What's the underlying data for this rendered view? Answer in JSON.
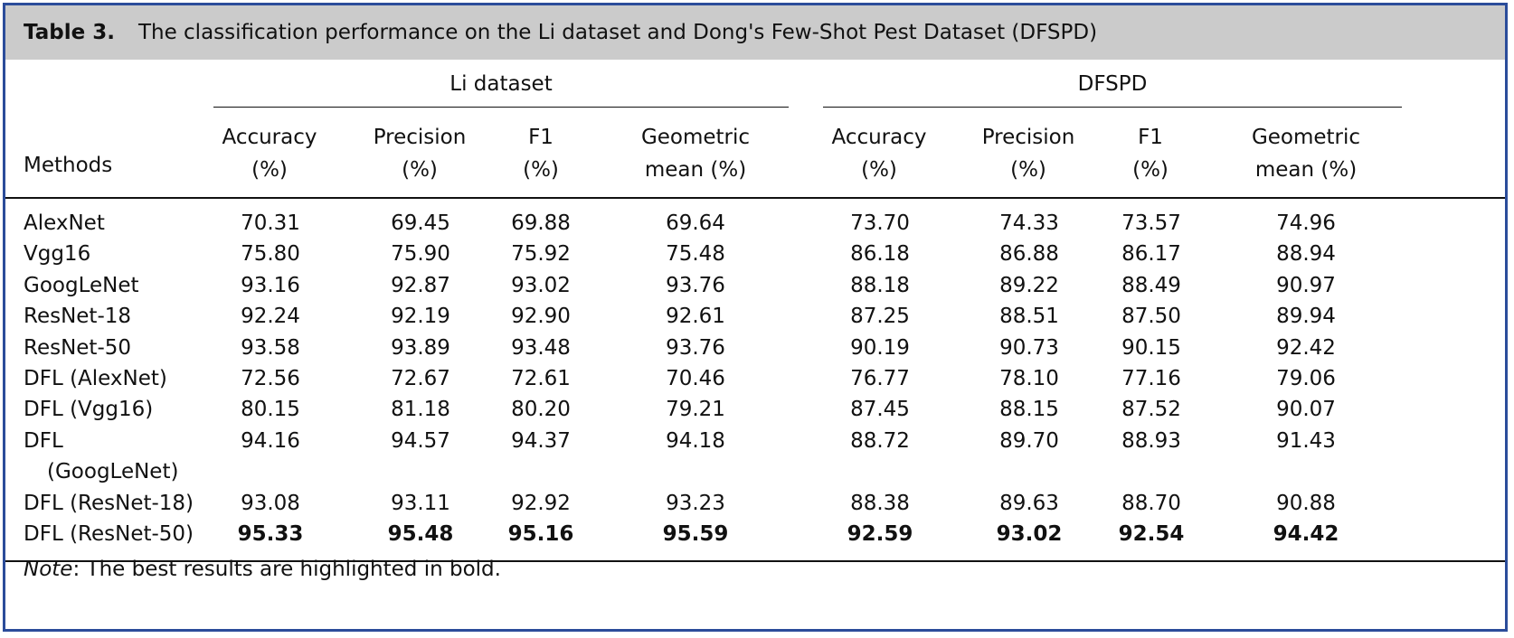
{
  "caption": {
    "label": "Table 3.",
    "text": "The classification performance on the Li dataset and Dong's Few-Shot Pest Dataset (DFSPD)"
  },
  "groups": {
    "li": "Li dataset",
    "dfspd": "DFSPD"
  },
  "headers": {
    "methods": "Methods",
    "li": [
      {
        "l1": "Accuracy",
        "l2": "(%)"
      },
      {
        "l1": "Precision",
        "l2": "(%)"
      },
      {
        "l1": "F1",
        "l2": "(%)"
      },
      {
        "l1": "Geometric",
        "l2": "mean (%)"
      }
    ],
    "dfspd": [
      {
        "l1": "Accuracy",
        "l2": "(%)"
      },
      {
        "l1": "Precision",
        "l2": "(%)"
      },
      {
        "l1": "F1",
        "l2": "(%)"
      },
      {
        "l1": "Geometric",
        "l2": "mean (%)"
      }
    ]
  },
  "rows": [
    {
      "method": "AlexNet",
      "values": [
        "70.31",
        "69.45",
        "69.88",
        "69.64",
        "73.70",
        "74.33",
        "73.57",
        "74.96"
      ]
    },
    {
      "method": "Vgg16",
      "values": [
        "75.80",
        "75.90",
        "75.92",
        "75.48",
        "86.18",
        "86.88",
        "86.17",
        "88.94"
      ]
    },
    {
      "method": "GoogLeNet",
      "values": [
        "93.16",
        "92.87",
        "93.02",
        "93.76",
        "88.18",
        "89.22",
        "88.49",
        "90.97"
      ]
    },
    {
      "method": "ResNet-18",
      "values": [
        "92.24",
        "92.19",
        "92.90",
        "92.61",
        "87.25",
        "88.51",
        "87.50",
        "89.94"
      ]
    },
    {
      "method": "ResNet-50",
      "values": [
        "93.58",
        "93.89",
        "93.48",
        "93.76",
        "90.19",
        "90.73",
        "90.15",
        "92.42"
      ]
    },
    {
      "method": "DFL (AlexNet)",
      "values": [
        "72.56",
        "72.67",
        "72.61",
        "70.46",
        "76.77",
        "78.10",
        "77.16",
        "79.06"
      ]
    },
    {
      "method": "DFL (Vgg16)",
      "values": [
        "80.15",
        "81.18",
        "80.20",
        "79.21",
        "87.45",
        "88.15",
        "87.52",
        "90.07"
      ]
    },
    {
      "method_l1": "DFL",
      "method_l2": "(GoogLeNet)",
      "values": [
        "94.16",
        "94.57",
        "94.37",
        "94.18",
        "88.72",
        "89.70",
        "88.93",
        "91.43"
      ]
    },
    {
      "method": "DFL (ResNet-18)",
      "values": [
        "93.08",
        "93.11",
        "92.92",
        "93.23",
        "88.38",
        "89.63",
        "88.70",
        "90.88"
      ]
    },
    {
      "method": "DFL (ResNet-50)",
      "values": [
        "95.33",
        "95.48",
        "95.16",
        "95.59",
        "92.59",
        "93.02",
        "92.54",
        "94.42"
      ],
      "bold": true
    }
  ],
  "note": {
    "label": "Note",
    "text": ": The best results are highlighted in bold."
  }
}
